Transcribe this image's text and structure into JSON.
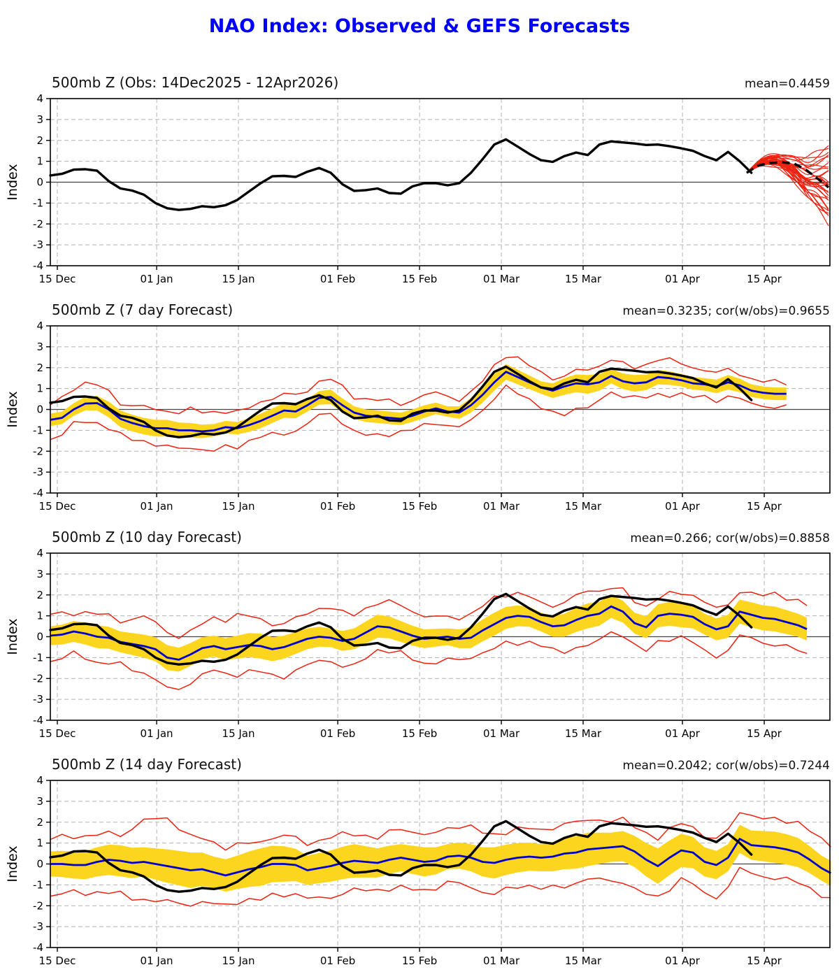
{
  "page": {
    "title": "NAO Index: Observed & GEFS Forecasts"
  },
  "colors": {
    "title_blue": "#0000ff",
    "observed_black": "#000000",
    "forecast_blue": "#0000cd",
    "envelope_red": "#ee2211",
    "band_yellow": "#fcd51e",
    "grid_grey": "#b3b3b3",
    "zero_line": "#444444"
  },
  "ylabel": "Index",
  "yticks": [
    "4",
    "3",
    "2",
    "1",
    "0",
    "-1",
    "-2",
    "-3",
    "-4"
  ],
  "xticks": [
    {
      "day": 0,
      "label": "15 Dec"
    },
    {
      "day": 17,
      "label": "01 Jan"
    },
    {
      "day": 31,
      "label": "15 Jan"
    },
    {
      "day": 48,
      "label": "01 Feb"
    },
    {
      "day": 62,
      "label": "15 Feb"
    },
    {
      "day": 76,
      "label": "01 Mar"
    },
    {
      "day": 90,
      "label": "15 Mar"
    },
    {
      "day": 107,
      "label": "01 Apr"
    },
    {
      "day": 121,
      "label": "15 Apr"
    }
  ],
  "observed": {
    "name": "observed-nao-index",
    "start": -1.2,
    "step": 2,
    "values": [
      0.32,
      0.4,
      0.6,
      0.62,
      0.55,
      0.05,
      -0.3,
      -0.4,
      -0.6,
      -1.0,
      -1.25,
      -1.33,
      -1.28,
      -1.15,
      -1.2,
      -1.1,
      -0.85,
      -0.45,
      -0.05,
      0.28,
      0.3,
      0.25,
      0.5,
      0.68,
      0.45,
      -0.1,
      -0.42,
      -0.38,
      -0.3,
      -0.52,
      -0.55,
      -0.2,
      -0.05,
      -0.05,
      -0.15,
      -0.05,
      0.45,
      1.1,
      1.8,
      2.05,
      1.7,
      1.35,
      1.05,
      0.97,
      1.25,
      1.42,
      1.3,
      1.8,
      1.95,
      1.9,
      1.85,
      1.78,
      1.8,
      1.72,
      1.62,
      1.5,
      1.25,
      1.05,
      1.45,
      1.0,
      0.45
    ]
  },
  "chart_data": [
    {
      "type": "line",
      "title": "500mb Z (Obs: 14Dec2025 - 12Apr2026)",
      "stats": "mean=0.4459",
      "xlabel": "",
      "ylabel": "Index",
      "ylim": [
        -4,
        4
      ],
      "grid": "dashed",
      "ensemble_mean_dashed": {
        "start": 118,
        "step": 2,
        "values": [
          0.45,
          0.8,
          0.92,
          0.95,
          0.9,
          0.62,
          0.2,
          -0.25
        ]
      },
      "ensemble": {
        "members": 30,
        "start_day": 118,
        "start_value": 0.45,
        "end_day": 132.4,
        "target_range": [
          -2.5,
          2.0
        ],
        "seed": 20251214
      }
    },
    {
      "type": "line",
      "title": "500mb Z (7 day Forecast)",
      "stats": "mean=0.3235; cor(w/obs)=0.9655",
      "xlabel": "",
      "ylabel": "Index",
      "ylim": [
        -4,
        4
      ],
      "grid": "dashed",
      "end_day": 125,
      "mean_blue": {
        "start": -1.2,
        "step": 2,
        "values": [
          -0.5,
          -0.4,
          0.0,
          0.28,
          0.3,
          0.0,
          -0.45,
          -0.65,
          -0.8,
          -0.9,
          -0.9,
          -1.0,
          -1.0,
          -1.05,
          -1.0,
          -0.85,
          -0.9,
          -0.75,
          -0.55,
          -0.3,
          -0.05,
          -0.1,
          0.2,
          0.55,
          0.6,
          0.2,
          -0.15,
          -0.3,
          -0.35,
          -0.4,
          -0.45,
          -0.3,
          -0.1,
          0.05,
          -0.1,
          -0.15,
          0.2,
          0.7,
          1.3,
          1.8,
          1.55,
          1.3,
          1.05,
          0.9,
          1.1,
          1.25,
          1.2,
          1.3,
          1.6,
          1.35,
          1.25,
          1.3,
          1.55,
          1.5,
          1.4,
          1.25,
          1.2,
          1.1,
          1.3,
          1.15,
          0.9,
          0.8,
          0.75,
          0.75
        ]
      },
      "band_halfwidth": {
        "start": -1.2,
        "step": 4,
        "values": [
          0.3,
          0.3,
          0.35,
          0.4,
          0.4,
          0.4,
          0.35,
          0.3,
          0.3,
          0.35,
          0.35,
          0.3,
          0.35,
          0.3,
          0.3,
          0.3,
          0.3,
          0.25,
          0.35,
          0.4,
          0.35,
          0.3,
          0.4,
          0.45,
          0.35,
          0.4,
          0.35,
          0.3,
          0.3,
          0.35,
          0.3,
          0.3
        ]
      },
      "envelope_upper_offset": {
        "start": -1.2,
        "step": 4,
        "values": [
          0.75,
          1.05,
          0.9,
          0.75,
          0.95,
          0.8,
          1.0,
          0.85,
          0.75,
          0.9,
          0.8,
          0.7,
          0.9,
          0.75,
          0.85,
          0.7,
          0.8,
          0.7,
          0.6,
          0.75,
          0.9,
          0.7,
          0.5,
          0.7,
          0.85,
          0.75,
          0.9,
          0.8,
          0.7,
          0.6,
          0.55,
          0.55
        ]
      },
      "envelope_lower_offset": {
        "start": -1.2,
        "step": 4,
        "values": [
          0.9,
          0.7,
          0.95,
          0.8,
          0.7,
          0.9,
          0.8,
          1.0,
          0.85,
          0.75,
          1.05,
          0.9,
          0.75,
          0.95,
          0.85,
          0.7,
          0.6,
          0.75,
          0.65,
          0.8,
          0.7,
          0.95,
          1.3,
          1.1,
          0.75,
          0.65,
          0.85,
          0.7,
          0.6,
          0.7,
          0.6,
          0.65
        ]
      }
    },
    {
      "type": "line",
      "title": "500mb Z (10 day Forecast)",
      "stats": "mean=0.266; cor(w/obs)=0.8858",
      "xlabel": "",
      "ylabel": "Index",
      "ylim": [
        -4,
        4
      ],
      "grid": "dashed",
      "end_day": 128.3,
      "mean_blue": {
        "start": -1.2,
        "step": 2,
        "values": [
          0.05,
          0.1,
          0.25,
          0.15,
          0.0,
          -0.05,
          -0.25,
          -0.35,
          -0.45,
          -0.6,
          -1.0,
          -1.1,
          -0.85,
          -0.55,
          -0.45,
          -0.6,
          -0.5,
          -0.4,
          -0.45,
          -0.6,
          -0.5,
          -0.3,
          -0.1,
          0.0,
          -0.05,
          -0.2,
          -0.1,
          0.2,
          0.5,
          0.45,
          0.25,
          0.05,
          -0.1,
          -0.05,
          0.0,
          -0.1,
          -0.05,
          0.3,
          0.6,
          0.9,
          1.0,
          0.95,
          0.7,
          0.5,
          0.55,
          0.8,
          1.0,
          1.1,
          1.45,
          1.2,
          0.65,
          0.45,
          1.0,
          1.1,
          1.05,
          0.95,
          0.6,
          0.35,
          0.5,
          1.2,
          1.05,
          0.9,
          0.85,
          0.7,
          0.55,
          0.3
        ]
      },
      "band_halfwidth": {
        "start": -1.2,
        "step": 4,
        "values": [
          0.45,
          0.5,
          0.55,
          0.5,
          0.55,
          0.6,
          0.55,
          0.5,
          0.55,
          0.6,
          0.55,
          0.5,
          0.45,
          0.5,
          0.55,
          0.5,
          0.45,
          0.4,
          0.5,
          0.55,
          0.5,
          0.45,
          0.55,
          0.6,
          0.55,
          0.5,
          0.55,
          0.6,
          0.5,
          0.55,
          0.6,
          0.6,
          0.55
        ]
      },
      "envelope_upper_offset": {
        "start": -1.2,
        "step": 4,
        "values": [
          1.05,
          0.9,
          1.1,
          1.0,
          1.4,
          1.2,
          1.05,
          1.35,
          1.5,
          1.3,
          1.1,
          1.25,
          1.45,
          1.2,
          1.1,
          1.3,
          1.05,
          0.95,
          1.1,
          1.25,
          1.05,
          0.9,
          1.1,
          1.2,
          0.95,
          1.05,
          0.9,
          1.0,
          1.1,
          0.95,
          1.05,
          1.15,
          1.2
        ]
      },
      "envelope_lower_offset": {
        "start": -1.2,
        "step": 4,
        "values": [
          1.2,
          1.05,
          1.25,
          1.1,
          1.3,
          1.5,
          1.35,
          1.15,
          1.3,
          1.2,
          1.4,
          1.25,
          1.1,
          1.3,
          1.15,
          1.05,
          1.2,
          1.1,
          0.95,
          1.15,
          1.3,
          1.1,
          1.25,
          1.4,
          1.2,
          1.05,
          1.25,
          1.1,
          1.3,
          1.2,
          1.1,
          1.25,
          1.15
        ]
      }
    },
    {
      "type": "line",
      "title": "500mb Z (14 day Forecast)",
      "stats": "mean=0.2042; cor(w/obs)=0.7244",
      "xlabel": "",
      "ylabel": "Index",
      "ylim": [
        -4,
        4
      ],
      "grid": "dashed",
      "end_day": 132.4,
      "mean_blue": {
        "start": -1.2,
        "step": 2,
        "values": [
          0.0,
          0.0,
          -0.05,
          -0.05,
          0.1,
          0.2,
          0.15,
          0.05,
          0.1,
          0.0,
          -0.1,
          -0.2,
          -0.3,
          -0.25,
          -0.4,
          -0.55,
          -0.4,
          -0.25,
          -0.15,
          0.0,
          0.0,
          -0.05,
          -0.3,
          -0.2,
          -0.1,
          0.05,
          0.15,
          0.1,
          0.05,
          0.2,
          0.3,
          0.2,
          0.1,
          0.15,
          0.35,
          0.4,
          0.3,
          0.1,
          0.05,
          0.2,
          0.3,
          0.35,
          0.3,
          0.35,
          0.5,
          0.55,
          0.7,
          0.75,
          0.8,
          0.85,
          0.6,
          0.2,
          -0.1,
          0.3,
          0.65,
          0.55,
          0.1,
          -0.05,
          0.3,
          1.2,
          0.9,
          0.85,
          0.8,
          0.7,
          0.55,
          0.2,
          -0.2,
          -0.5,
          -0.55
        ]
      },
      "band_halfwidth": {
        "start": -1.2,
        "step": 4,
        "values": [
          0.6,
          0.65,
          0.7,
          0.75,
          0.7,
          0.8,
          0.85,
          0.75,
          0.8,
          0.9,
          0.85,
          0.7,
          0.75,
          0.8,
          0.7,
          0.65,
          0.7,
          0.6,
          0.65,
          0.75,
          0.7,
          0.65,
          0.75,
          0.8,
          0.7,
          0.75,
          0.85,
          0.8,
          0.7,
          0.65,
          0.7,
          0.75,
          0.7,
          0.6
        ]
      },
      "envelope_upper_offset": {
        "start": -1.2,
        "step": 4,
        "values": [
          1.2,
          1.4,
          1.3,
          1.25,
          2.0,
          2.3,
          1.6,
          1.4,
          1.3,
          1.2,
          1.35,
          1.25,
          1.4,
          1.3,
          1.2,
          1.4,
          1.3,
          1.35,
          1.5,
          1.3,
          1.4,
          1.3,
          1.45,
          1.4,
          1.3,
          1.2,
          1.35,
          1.3,
          1.2,
          1.3,
          1.4,
          1.3,
          1.45,
          1.35
        ]
      },
      "envelope_lower_offset": {
        "start": -1.2,
        "step": 4,
        "values": [
          1.5,
          1.3,
          1.45,
          1.6,
          1.8,
          1.7,
          1.65,
          1.5,
          1.4,
          1.55,
          1.45,
          1.35,
          1.5,
          1.4,
          1.3,
          1.45,
          1.35,
          1.25,
          1.4,
          1.5,
          1.35,
          1.45,
          1.55,
          1.4,
          1.6,
          1.8,
          1.5,
          1.4,
          1.55,
          1.45,
          1.35,
          1.5,
          1.4,
          1.3
        ]
      }
    }
  ]
}
